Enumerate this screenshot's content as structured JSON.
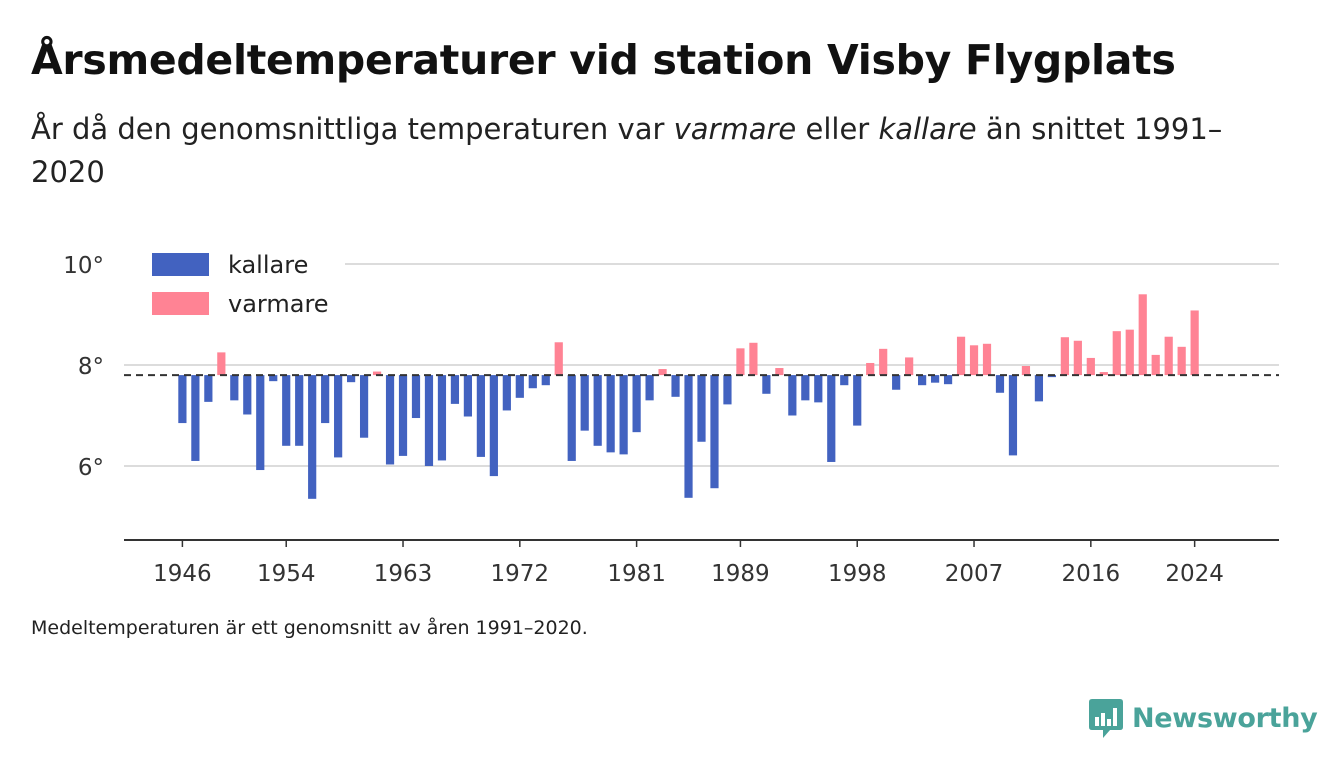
{
  "title": "Årsmedeltemperaturer vid station Visby Flygplats",
  "subtitle": {
    "part1": "År då den genomsnittliga temperaturen var ",
    "em1": "varmare",
    "part2": " eller ",
    "em2": "kallare",
    "part3": " än snittet 1991–2020"
  },
  "note": "Medeltemperaturen är ett genomsnitt av åren 1991–2020.",
  "brand": "Newsworthy",
  "colors": {
    "colder": "#4262c0",
    "warmer": "#ff8394",
    "brand": "#4aa39a"
  },
  "chart_data": {
    "type": "bar",
    "baseline": 7.8,
    "ylim": [
      4.5,
      10.5
    ],
    "yticks": [
      6,
      8,
      10
    ],
    "ytick_labels": [
      "6°",
      "8°",
      "10°"
    ],
    "xticks": [
      1946,
      1954,
      1963,
      1972,
      1981,
      1989,
      1998,
      2007,
      2016,
      2024
    ],
    "xlim": [
      1941.5,
      2030.5
    ],
    "legend": {
      "position": "top-left",
      "entries": [
        {
          "label": "kallare",
          "color": "#4262c0"
        },
        {
          "label": "varmare",
          "color": "#ff8394"
        }
      ]
    },
    "grid": true,
    "years": [
      1946,
      1947,
      1948,
      1949,
      1950,
      1951,
      1952,
      1953,
      1954,
      1955,
      1956,
      1957,
      1958,
      1959,
      1960,
      1961,
      1962,
      1963,
      1964,
      1965,
      1966,
      1967,
      1968,
      1969,
      1970,
      1971,
      1972,
      1973,
      1974,
      1975,
      1976,
      1977,
      1978,
      1979,
      1980,
      1981,
      1982,
      1983,
      1984,
      1985,
      1986,
      1987,
      1988,
      1989,
      1990,
      1991,
      1992,
      1993,
      1994,
      1995,
      1996,
      1997,
      1998,
      1999,
      2000,
      2001,
      2002,
      2003,
      2004,
      2005,
      2006,
      2007,
      2008,
      2009,
      2010,
      2011,
      2012,
      2013,
      2014,
      2015,
      2016,
      2017,
      2018,
      2019,
      2020,
      2021,
      2022,
      2023,
      2024
    ],
    "values": [
      6.85,
      6.1,
      7.27,
      8.25,
      7.3,
      7.02,
      5.92,
      7.68,
      6.4,
      6.4,
      5.35,
      6.85,
      6.17,
      7.66,
      6.56,
      7.87,
      6.03,
      6.2,
      6.95,
      6.0,
      6.11,
      7.23,
      6.98,
      6.18,
      5.8,
      7.1,
      7.35,
      7.54,
      7.6,
      8.45,
      6.1,
      6.7,
      6.4,
      6.27,
      6.23,
      6.67,
      7.3,
      7.92,
      7.37,
      5.37,
      6.48,
      5.56,
      7.22,
      8.33,
      8.44,
      7.43,
      7.94,
      7.0,
      7.3,
      7.26,
      6.08,
      7.6,
      6.8,
      8.04,
      8.32,
      7.51,
      8.15,
      7.6,
      7.65,
      7.62,
      8.56,
      8.39,
      8.42,
      7.45,
      6.21,
      7.98,
      7.28,
      7.76,
      8.55,
      8.48,
      8.14,
      7.86,
      8.67,
      8.7,
      9.4,
      8.2,
      8.56,
      8.36,
      9.08
    ]
  }
}
